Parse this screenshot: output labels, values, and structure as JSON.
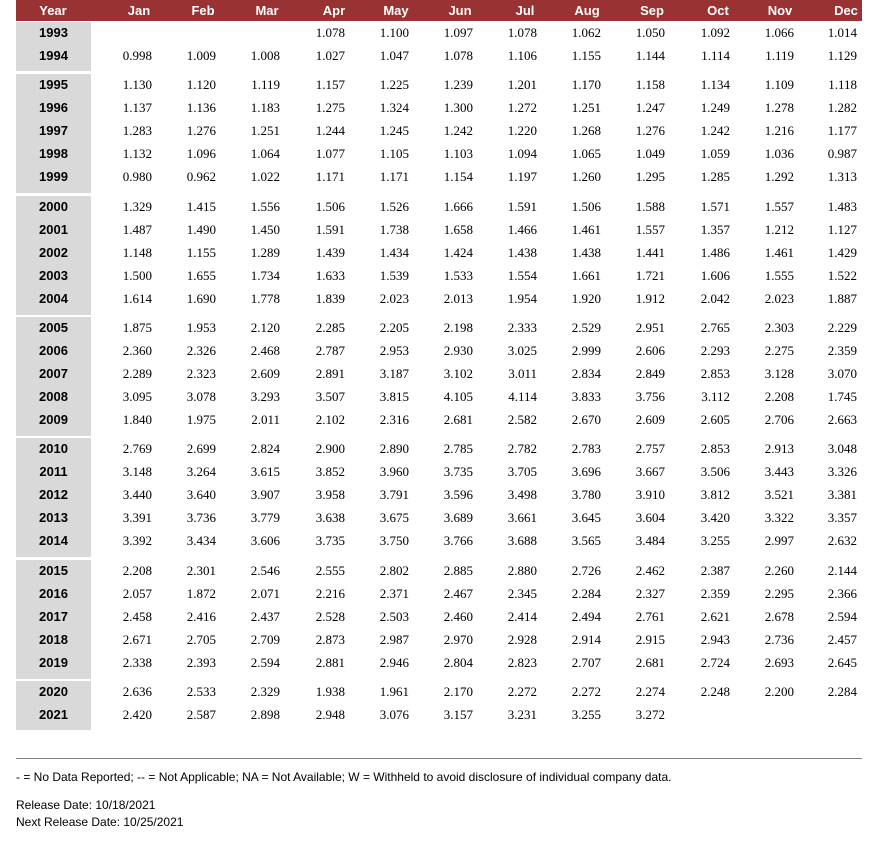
{
  "table": {
    "header": [
      "Year",
      "Jan",
      "Feb",
      "Mar",
      "Apr",
      "May",
      "Jun",
      "Jul",
      "Aug",
      "Sep",
      "Oct",
      "Nov",
      "Dec"
    ],
    "groups": [
      [
        {
          "year": "1993",
          "values": [
            "",
            "",
            "",
            "1.078",
            "1.100",
            "1.097",
            "1.078",
            "1.062",
            "1.050",
            "1.092",
            "1.066",
            "1.014"
          ]
        },
        {
          "year": "1994",
          "values": [
            "0.998",
            "1.009",
            "1.008",
            "1.027",
            "1.047",
            "1.078",
            "1.106",
            "1.155",
            "1.144",
            "1.114",
            "1.119",
            "1.129"
          ]
        }
      ],
      [
        {
          "year": "1995",
          "values": [
            "1.130",
            "1.120",
            "1.119",
            "1.157",
            "1.225",
            "1.239",
            "1.201",
            "1.170",
            "1.158",
            "1.134",
            "1.109",
            "1.118"
          ]
        },
        {
          "year": "1996",
          "values": [
            "1.137",
            "1.136",
            "1.183",
            "1.275",
            "1.324",
            "1.300",
            "1.272",
            "1.251",
            "1.247",
            "1.249",
            "1.278",
            "1.282"
          ]
        },
        {
          "year": "1997",
          "values": [
            "1.283",
            "1.276",
            "1.251",
            "1.244",
            "1.245",
            "1.242",
            "1.220",
            "1.268",
            "1.276",
            "1.242",
            "1.216",
            "1.177"
          ]
        },
        {
          "year": "1998",
          "values": [
            "1.132",
            "1.096",
            "1.064",
            "1.077",
            "1.105",
            "1.103",
            "1.094",
            "1.065",
            "1.049",
            "1.059",
            "1.036",
            "0.987"
          ]
        },
        {
          "year": "1999",
          "values": [
            "0.980",
            "0.962",
            "1.022",
            "1.171",
            "1.171",
            "1.154",
            "1.197",
            "1.260",
            "1.295",
            "1.285",
            "1.292",
            "1.313"
          ]
        }
      ],
      [
        {
          "year": "2000",
          "values": [
            "1.329",
            "1.415",
            "1.556",
            "1.506",
            "1.526",
            "1.666",
            "1.591",
            "1.506",
            "1.588",
            "1.571",
            "1.557",
            "1.483"
          ]
        },
        {
          "year": "2001",
          "values": [
            "1.487",
            "1.490",
            "1.450",
            "1.591",
            "1.738",
            "1.658",
            "1.466",
            "1.461",
            "1.557",
            "1.357",
            "1.212",
            "1.127"
          ]
        },
        {
          "year": "2002",
          "values": [
            "1.148",
            "1.155",
            "1.289",
            "1.439",
            "1.434",
            "1.424",
            "1.438",
            "1.438",
            "1.441",
            "1.486",
            "1.461",
            "1.429"
          ]
        },
        {
          "year": "2003",
          "values": [
            "1.500",
            "1.655",
            "1.734",
            "1.633",
            "1.539",
            "1.533",
            "1.554",
            "1.661",
            "1.721",
            "1.606",
            "1.555",
            "1.522"
          ]
        },
        {
          "year": "2004",
          "values": [
            "1.614",
            "1.690",
            "1.778",
            "1.839",
            "2.023",
            "2.013",
            "1.954",
            "1.920",
            "1.912",
            "2.042",
            "2.023",
            "1.887"
          ]
        }
      ],
      [
        {
          "year": "2005",
          "values": [
            "1.875",
            "1.953",
            "2.120",
            "2.285",
            "2.205",
            "2.198",
            "2.333",
            "2.529",
            "2.951",
            "2.765",
            "2.303",
            "2.229"
          ]
        },
        {
          "year": "2006",
          "values": [
            "2.360",
            "2.326",
            "2.468",
            "2.787",
            "2.953",
            "2.930",
            "3.025",
            "2.999",
            "2.606",
            "2.293",
            "2.275",
            "2.359"
          ]
        },
        {
          "year": "2007",
          "values": [
            "2.289",
            "2.323",
            "2.609",
            "2.891",
            "3.187",
            "3.102",
            "3.011",
            "2.834",
            "2.849",
            "2.853",
            "3.128",
            "3.070"
          ]
        },
        {
          "year": "2008",
          "values": [
            "3.095",
            "3.078",
            "3.293",
            "3.507",
            "3.815",
            "4.105",
            "4.114",
            "3.833",
            "3.756",
            "3.112",
            "2.208",
            "1.745"
          ]
        },
        {
          "year": "2009",
          "values": [
            "1.840",
            "1.975",
            "2.011",
            "2.102",
            "2.316",
            "2.681",
            "2.582",
            "2.670",
            "2.609",
            "2.605",
            "2.706",
            "2.663"
          ]
        }
      ],
      [
        {
          "year": "2010",
          "values": [
            "2.769",
            "2.699",
            "2.824",
            "2.900",
            "2.890",
            "2.785",
            "2.782",
            "2.783",
            "2.757",
            "2.853",
            "2.913",
            "3.048"
          ]
        },
        {
          "year": "2011",
          "values": [
            "3.148",
            "3.264",
            "3.615",
            "3.852",
            "3.960",
            "3.735",
            "3.705",
            "3.696",
            "3.667",
            "3.506",
            "3.443",
            "3.326"
          ]
        },
        {
          "year": "2012",
          "values": [
            "3.440",
            "3.640",
            "3.907",
            "3.958",
            "3.791",
            "3.596",
            "3.498",
            "3.780",
            "3.910",
            "3.812",
            "3.521",
            "3.381"
          ]
        },
        {
          "year": "2013",
          "values": [
            "3.391",
            "3.736",
            "3.779",
            "3.638",
            "3.675",
            "3.689",
            "3.661",
            "3.645",
            "3.604",
            "3.420",
            "3.322",
            "3.357"
          ]
        },
        {
          "year": "2014",
          "values": [
            "3.392",
            "3.434",
            "3.606",
            "3.735",
            "3.750",
            "3.766",
            "3.688",
            "3.565",
            "3.484",
            "3.255",
            "2.997",
            "2.632"
          ]
        }
      ],
      [
        {
          "year": "2015",
          "values": [
            "2.208",
            "2.301",
            "2.546",
            "2.555",
            "2.802",
            "2.885",
            "2.880",
            "2.726",
            "2.462",
            "2.387",
            "2.260",
            "2.144"
          ]
        },
        {
          "year": "2016",
          "values": [
            "2.057",
            "1.872",
            "2.071",
            "2.216",
            "2.371",
            "2.467",
            "2.345",
            "2.284",
            "2.327",
            "2.359",
            "2.295",
            "2.366"
          ]
        },
        {
          "year": "2017",
          "values": [
            "2.458",
            "2.416",
            "2.437",
            "2.528",
            "2.503",
            "2.460",
            "2.414",
            "2.494",
            "2.761",
            "2.621",
            "2.678",
            "2.594"
          ]
        },
        {
          "year": "2018",
          "values": [
            "2.671",
            "2.705",
            "2.709",
            "2.873",
            "2.987",
            "2.970",
            "2.928",
            "2.914",
            "2.915",
            "2.943",
            "2.736",
            "2.457"
          ]
        },
        {
          "year": "2019",
          "values": [
            "2.338",
            "2.393",
            "2.594",
            "2.881",
            "2.946",
            "2.804",
            "2.823",
            "2.707",
            "2.681",
            "2.724",
            "2.693",
            "2.645"
          ]
        }
      ],
      [
        {
          "year": "2020",
          "values": [
            "2.636",
            "2.533",
            "2.329",
            "1.938",
            "1.961",
            "2.170",
            "2.272",
            "2.272",
            "2.274",
            "2.248",
            "2.200",
            "2.284"
          ]
        },
        {
          "year": "2021",
          "values": [
            "2.420",
            "2.587",
            "2.898",
            "2.948",
            "3.076",
            "3.157",
            "3.231",
            "3.255",
            "3.272",
            "",
            "",
            ""
          ]
        }
      ]
    ]
  },
  "footnote": "- = No Data Reported;  -- = Not Applicable;  NA = Not Available;  W = Withheld to avoid disclosure of individual company data.",
  "release_date": "Release Date: 10/18/2021",
  "next_release_date": "Next Release Date: 10/25/2021",
  "colors": {
    "header_bg": "#993333",
    "year_bg": "#d9d9d9"
  }
}
